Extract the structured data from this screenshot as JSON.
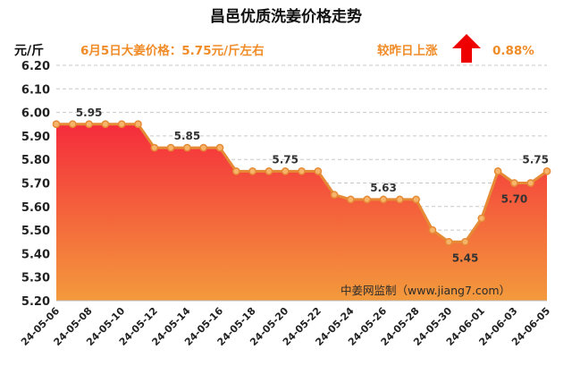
{
  "header": {
    "title": "昌邑优质洗姜价格走势",
    "price_note": "6月5日大姜价格：5.75元/斤左右",
    "change_label": "较昨日上涨",
    "change_value": "0.88%",
    "up_arrow_icon": "red-up-arrow-icon",
    "credit": "中姜网监制（www.jiang7.com）"
  },
  "colors": {
    "accent": "#f08c28",
    "line": "#e58a35",
    "marker_fill": "#f7b56c",
    "arrow": "#ee0000",
    "area_top": "#f52c3c",
    "area_bottom": "#f39a3c",
    "grid": "#c8c8c8"
  },
  "chart_data": {
    "type": "area",
    "ylabel": "元/斤",
    "ylim": [
      5.2,
      6.2
    ],
    "yticks": [
      "6.20",
      "6.10",
      "6.00",
      "5.90",
      "5.80",
      "5.70",
      "5.60",
      "5.50",
      "5.40",
      "5.30",
      "5.20"
    ],
    "grid": true,
    "x_tick_labels": [
      "24-05-06",
      "24-05-08",
      "24-05-10",
      "24-05-12",
      "24-05-14",
      "24-05-16",
      "24-05-18",
      "24-05-20",
      "24-05-22",
      "24-05-24",
      "24-05-26",
      "24-05-28",
      "24-05-30",
      "24-06-01",
      "24-06-03",
      "24-06-05"
    ],
    "x": [
      "24-05-06",
      "24-05-07",
      "24-05-08",
      "24-05-09",
      "24-05-10",
      "24-05-11",
      "24-05-12",
      "24-05-13",
      "24-05-14",
      "24-05-15",
      "24-05-16",
      "24-05-17",
      "24-05-18",
      "24-05-19",
      "24-05-20",
      "24-05-21",
      "24-05-22",
      "24-05-23",
      "24-05-24",
      "24-05-25",
      "24-05-26",
      "24-05-27",
      "24-05-28",
      "24-05-29",
      "24-05-30",
      "24-05-31",
      "24-06-01",
      "24-06-02",
      "24-06-03",
      "24-06-04",
      "24-06-05"
    ],
    "values": [
      5.95,
      5.95,
      5.95,
      5.95,
      5.95,
      5.95,
      5.85,
      5.85,
      5.85,
      5.85,
      5.85,
      5.75,
      5.75,
      5.75,
      5.75,
      5.75,
      5.75,
      5.65,
      5.63,
      5.63,
      5.63,
      5.63,
      5.63,
      5.5,
      5.45,
      5.45,
      5.55,
      5.75,
      5.7,
      5.7,
      5.75
    ],
    "data_labels": [
      {
        "index": 2,
        "text": "5.95"
      },
      {
        "index": 8,
        "text": "5.85"
      },
      {
        "index": 14,
        "text": "5.75"
      },
      {
        "index": 20,
        "text": "5.63"
      },
      {
        "index": 25,
        "text": "5.45"
      },
      {
        "index": 28,
        "text": "5.70"
      },
      {
        "index": 30,
        "text": "5.75"
      }
    ]
  }
}
